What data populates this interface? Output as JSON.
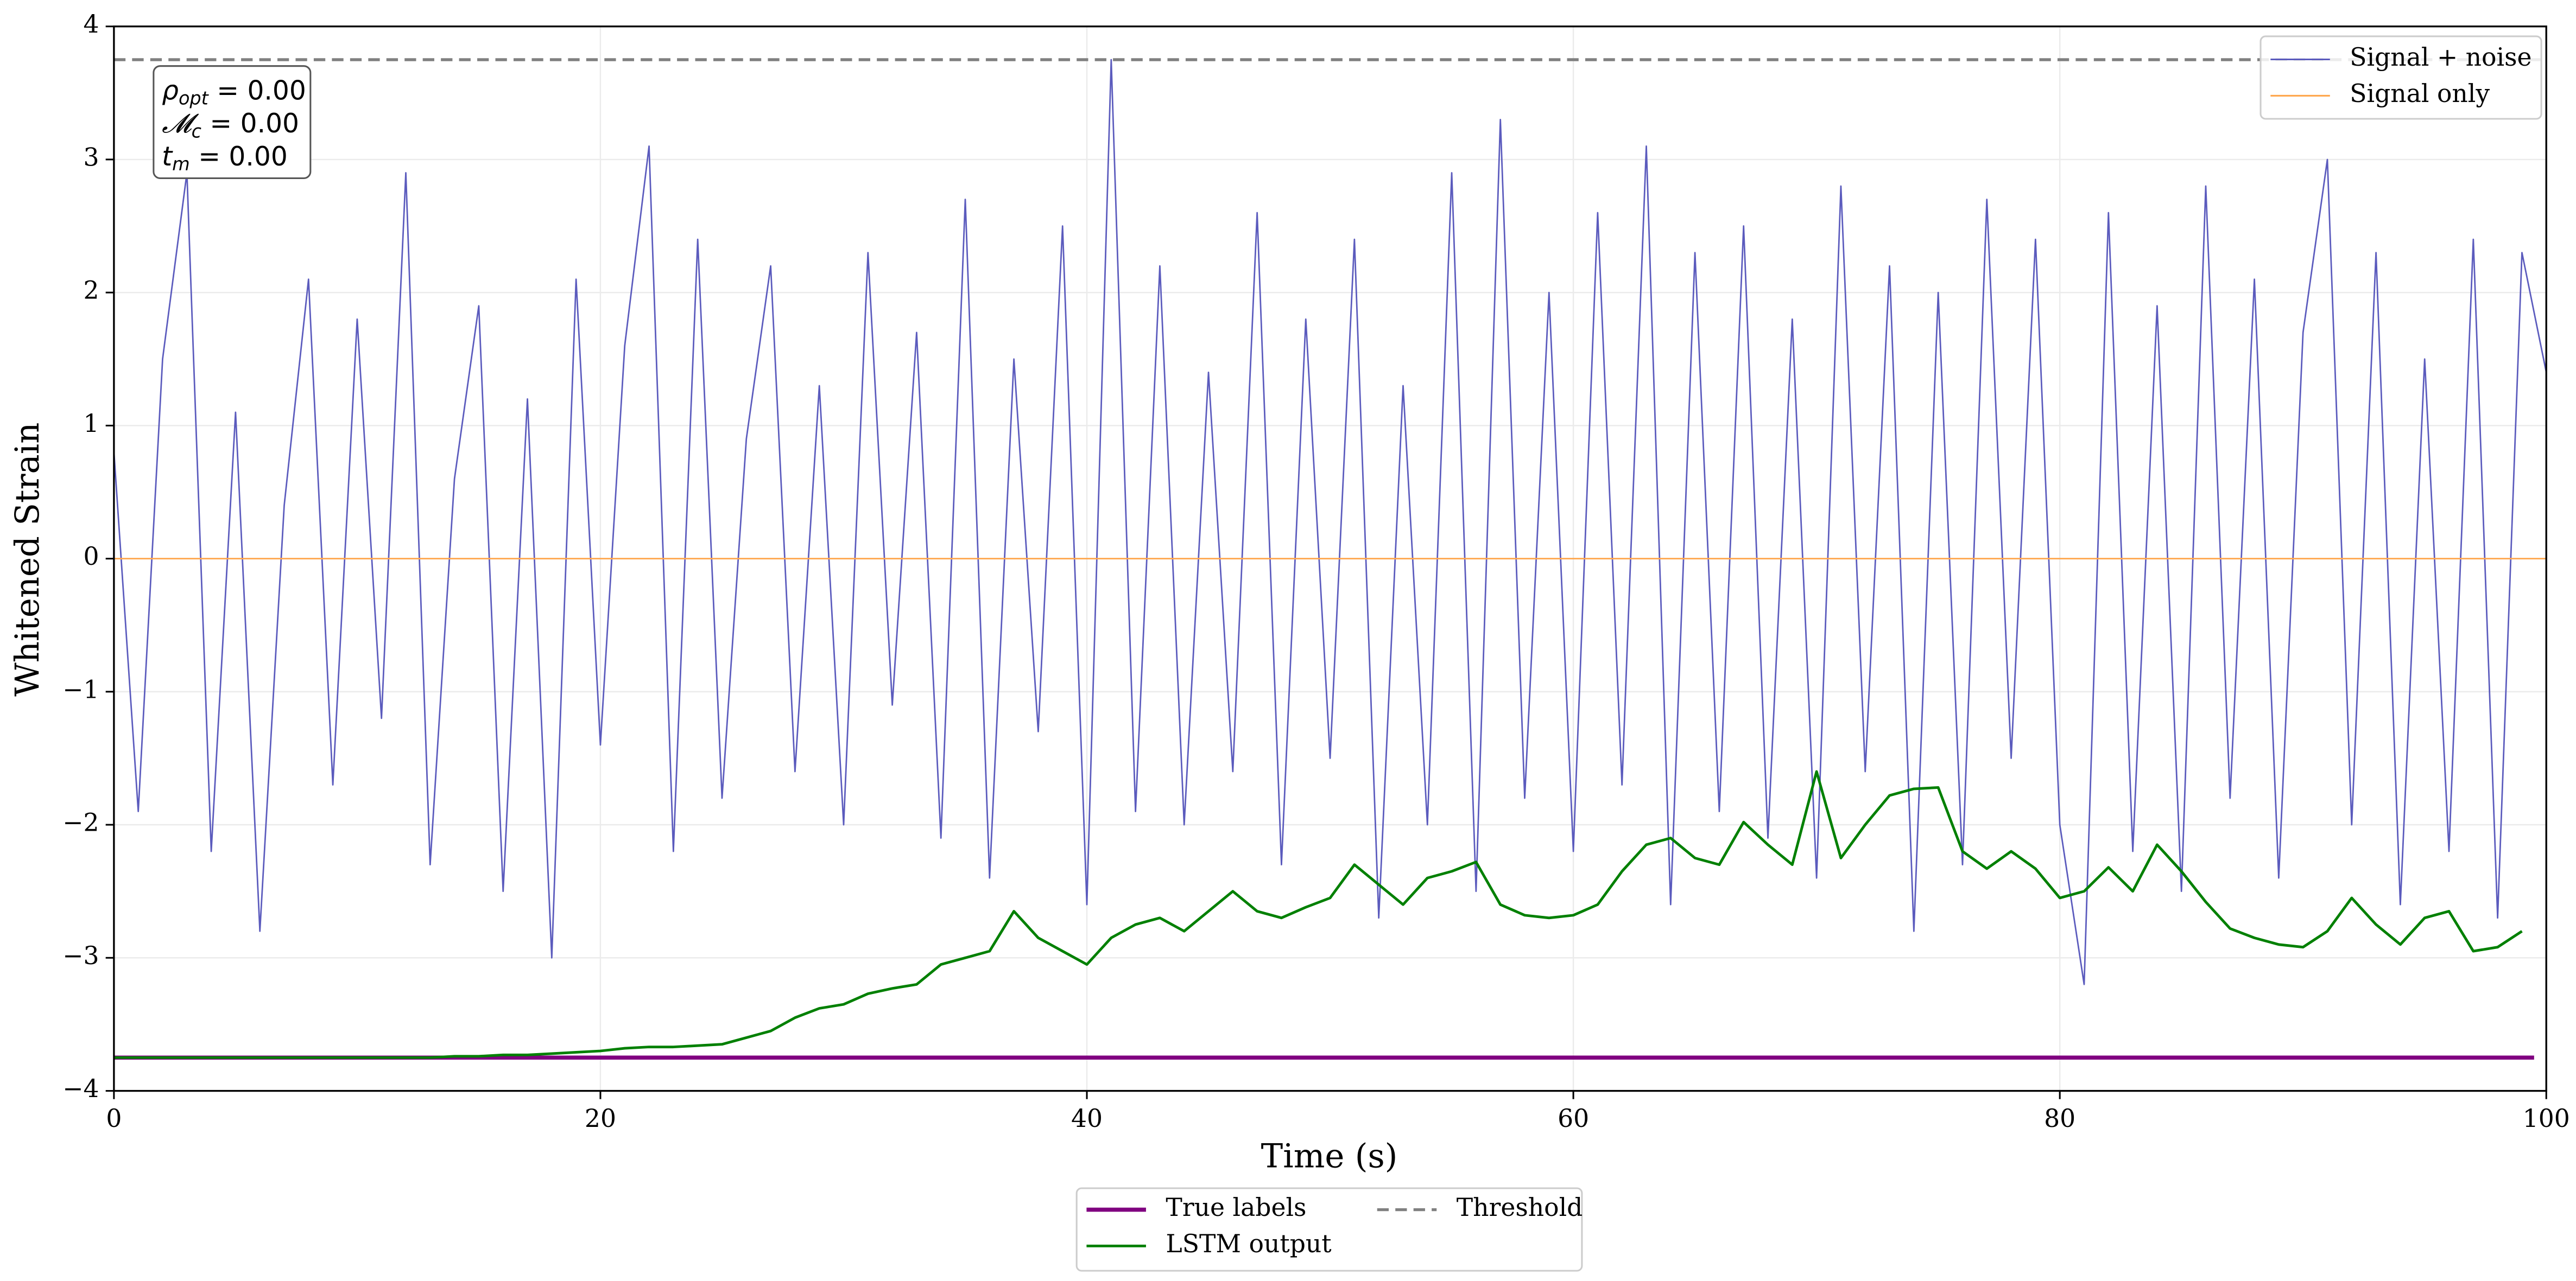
{
  "chart_data": {
    "type": "line",
    "xlabel": "Time (s)",
    "ylabel": "Whitened Strain",
    "xlim": [
      0,
      100
    ],
    "ylim": [
      -4,
      4
    ],
    "xticks": [
      0,
      20,
      40,
      60,
      80,
      100
    ],
    "yticks": [
      {
        "value": -4,
        "label": "−4"
      },
      {
        "value": -3,
        "label": "−3"
      },
      {
        "value": -2,
        "label": "−2"
      },
      {
        "value": -1,
        "label": "−1"
      },
      0,
      1,
      2,
      3,
      4
    ],
    "grid": true,
    "annotation": [
      {
        "symbol": "ρ",
        "sub": "opt",
        "text": " = 0.00"
      },
      {
        "symbol": "𝓜",
        "sub": "c",
        "text": " = 0.00"
      },
      {
        "symbol": "t",
        "sub": "m",
        "text": " = 0.00"
      }
    ],
    "series": [
      {
        "name": "Signal + noise",
        "color": "#5b5bbd",
        "legend": "upper right",
        "x": [
          0,
          1,
          2,
          3,
          4,
          5,
          6,
          7,
          8,
          9,
          10,
          11,
          12,
          13,
          14,
          15,
          16,
          17,
          18,
          19,
          20,
          21,
          22,
          23,
          24,
          25,
          26,
          27,
          28,
          29,
          30,
          31,
          32,
          33,
          34,
          35,
          36,
          37,
          38,
          39,
          40,
          41,
          42,
          43,
          44,
          45,
          46,
          47,
          48,
          49,
          50,
          51,
          52,
          53,
          54,
          55,
          56,
          57,
          58,
          59,
          60,
          61,
          62,
          63,
          64,
          65,
          66,
          67,
          68,
          69,
          70,
          71,
          72,
          73,
          74,
          75,
          76,
          77,
          78,
          79,
          80,
          81,
          82,
          83,
          84,
          85,
          86,
          87,
          88,
          89,
          90,
          91,
          92,
          93,
          94,
          95,
          96,
          97,
          98,
          99,
          100
        ],
        "values": [
          0.8,
          -1.9,
          1.5,
          2.9,
          -2.2,
          1.1,
          -2.8,
          0.4,
          2.1,
          -1.7,
          1.8,
          -1.2,
          2.9,
          -2.3,
          0.6,
          1.9,
          -2.5,
          1.2,
          -3.0,
          2.1,
          -1.4,
          1.6,
          3.1,
          -2.2,
          2.4,
          -1.8,
          0.9,
          2.2,
          -1.6,
          1.3,
          -2.0,
          2.3,
          -1.1,
          1.7,
          -2.1,
          2.7,
          -2.4,
          1.5,
          -1.3,
          2.5,
          -2.6,
          3.75,
          -1.9,
          2.2,
          -2.0,
          1.4,
          -1.6,
          2.6,
          -2.3,
          1.8,
          -1.5,
          2.4,
          -2.7,
          1.3,
          -2.0,
          2.9,
          -2.5,
          3.3,
          -1.8,
          2.0,
          -2.2,
          2.6,
          -1.7,
          3.1,
          -2.6,
          2.3,
          -1.9,
          2.5,
          -2.1,
          1.8,
          -2.4,
          2.8,
          -1.6,
          2.2,
          -2.8,
          2.0,
          -2.3,
          2.7,
          -1.5,
          2.4,
          -2.0,
          -3.2,
          2.6,
          -2.2,
          1.9,
          -2.5,
          2.8,
          -1.8,
          2.1,
          -2.4,
          1.7,
          3.0,
          -2.0,
          2.3,
          -2.6,
          1.5,
          -2.2,
          2.4,
          -2.7,
          2.3,
          1.4
        ]
      },
      {
        "name": "Signal only",
        "color": "#ffa64d",
        "legend": "upper right",
        "x": [
          0,
          100
        ],
        "values": [
          0,
          0
        ]
      },
      {
        "name": "True labels",
        "color": "#800080",
        "legend": "lower center",
        "width": 2.5,
        "x": [
          0,
          99.5
        ],
        "values": [
          -3.75,
          -3.75
        ]
      },
      {
        "name": "LSTM output",
        "color": "#008000",
        "legend": "lower center",
        "width": 1.6,
        "x": [
          0,
          1,
          2,
          3,
          4,
          5,
          6,
          7,
          8,
          9,
          10,
          11,
          12,
          13,
          14,
          15,
          16,
          17,
          18,
          19,
          20,
          21,
          22,
          23,
          24,
          25,
          26,
          27,
          28,
          29,
          30,
          31,
          32,
          33,
          34,
          35,
          36,
          37,
          38,
          39,
          40,
          41,
          42,
          43,
          44,
          45,
          46,
          47,
          48,
          49,
          50,
          51,
          52,
          53,
          54,
          55,
          56,
          57,
          58,
          59,
          60,
          61,
          62,
          63,
          64,
          65,
          66,
          67,
          68,
          69,
          70,
          71,
          72,
          73,
          74,
          75,
          76,
          77,
          78,
          79,
          80,
          81,
          82,
          83,
          84,
          85,
          86,
          87,
          88,
          89,
          90,
          91,
          92,
          93,
          94,
          95,
          96,
          97,
          98,
          99
        ],
        "values": [
          -3.75,
          -3.75,
          -3.75,
          -3.75,
          -3.75,
          -3.75,
          -3.75,
          -3.75,
          -3.75,
          -3.75,
          -3.75,
          -3.75,
          -3.75,
          -3.75,
          -3.74,
          -3.74,
          -3.73,
          -3.73,
          -3.72,
          -3.71,
          -3.7,
          -3.68,
          -3.67,
          -3.67,
          -3.66,
          -3.65,
          -3.6,
          -3.55,
          -3.45,
          -3.38,
          -3.35,
          -3.27,
          -3.23,
          -3.2,
          -3.05,
          -3.0,
          -2.95,
          -2.65,
          -2.85,
          -2.95,
          -3.05,
          -2.85,
          -2.75,
          -2.7,
          -2.8,
          -2.65,
          -2.5,
          -2.65,
          -2.7,
          -2.62,
          -2.55,
          -2.3,
          -2.45,
          -2.6,
          -2.4,
          -2.35,
          -2.28,
          -2.6,
          -2.68,
          -2.7,
          -2.68,
          -2.6,
          -2.35,
          -2.15,
          -2.1,
          -2.25,
          -2.3,
          -1.98,
          -2.15,
          -2.3,
          -1.6,
          -2.25,
          -2.0,
          -1.78,
          -1.73,
          -1.72,
          -2.2,
          -2.33,
          -2.2,
          -2.33,
          -2.55,
          -2.5,
          -2.32,
          -2.5,
          -2.15,
          -2.35,
          -2.58,
          -2.78,
          -2.85,
          -2.9,
          -2.92,
          -2.8,
          -2.55,
          -2.75,
          -2.9,
          -2.7,
          -2.65,
          -2.95,
          -2.92,
          -2.8
        ]
      },
      {
        "name": "Threshold",
        "color": "#808080",
        "legend": "lower center",
        "dash": true,
        "width": 1.8,
        "x": [
          0,
          100
        ],
        "values": [
          3.75,
          3.75
        ]
      }
    ]
  }
}
